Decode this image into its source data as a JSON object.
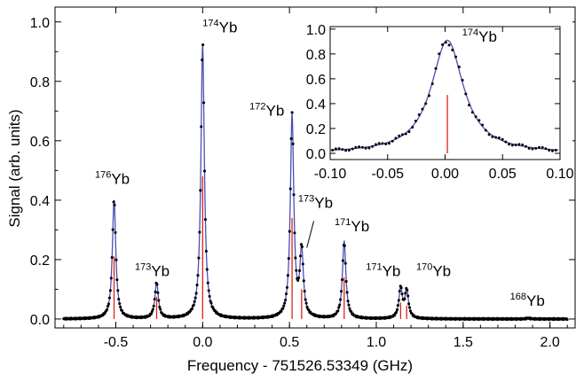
{
  "chart_data": [
    {
      "type": "line",
      "id": "main",
      "xlabel": "Frequency - 751526.53349 (GHz)",
      "ylabel": "Signal (arb. units)",
      "xlim": [
        -0.85,
        2.15
      ],
      "ylim": [
        -0.03,
        1.05
      ],
      "xticks": [
        {
          "v": -0.5,
          "label": "-0.5"
        },
        {
          "v": 0.0,
          "label": "0.0"
        },
        {
          "v": 0.5,
          "label": "0.5"
        },
        {
          "v": 1.0,
          "label": "1.0"
        },
        {
          "v": 1.5,
          "label": "1.5"
        },
        {
          "v": 2.0,
          "label": "2.0"
        }
      ],
      "yticks": [
        {
          "v": 0.0,
          "label": "0.0"
        },
        {
          "v": 0.2,
          "label": "0.2"
        },
        {
          "v": 0.4,
          "label": "0.4"
        },
        {
          "v": 0.6,
          "label": "0.6"
        },
        {
          "v": 0.8,
          "label": "0.8"
        },
        {
          "v": 1.0,
          "label": "1.0"
        }
      ],
      "peaks": [
        {
          "x": -0.51,
          "height": 0.4,
          "stick": 0.21
        },
        {
          "x": -0.265,
          "height": 0.12,
          "stick": 0.075
        },
        {
          "x": 0.0,
          "height": 0.92,
          "stick": 0.48
        },
        {
          "x": 0.515,
          "height": 0.68,
          "stick": 0.34
        },
        {
          "x": 0.57,
          "height": 0.22,
          "stick": 0.1
        },
        {
          "x": 0.815,
          "height": 0.26,
          "stick": 0.14
        },
        {
          "x": 1.14,
          "height": 0.1,
          "stick": 0.055
        },
        {
          "x": 1.175,
          "height": 0.095,
          "stick": 0.045
        },
        {
          "x": 1.875,
          "height": 0.003,
          "stick": 0.003
        }
      ],
      "labels": [
        {
          "iso": "176",
          "el": "Yb",
          "x": -0.52,
          "y": 0.455
        },
        {
          "iso": "173",
          "el": "Yb",
          "x": -0.29,
          "y": 0.145
        },
        {
          "iso": "174",
          "el": "Yb",
          "x": 0.1,
          "y": 0.965
        },
        {
          "iso": "172",
          "el": "Yb",
          "x": 0.37,
          "y": 0.685
        },
        {
          "iso": "173",
          "el": "Yb",
          "x": 0.65,
          "y": 0.375
        },
        {
          "iso": "171",
          "el": "Yb",
          "x": 0.86,
          "y": 0.295
        },
        {
          "iso": "171",
          "el": "Yb",
          "x": 1.04,
          "y": 0.145
        },
        {
          "iso": "170",
          "el": "Yb",
          "x": 1.33,
          "y": 0.145
        },
        {
          "iso": "168",
          "el": "Yb",
          "x": 1.87,
          "y": 0.045
        }
      ]
    },
    {
      "type": "line",
      "id": "inset",
      "xlim": [
        -0.1,
        0.1
      ],
      "ylim": [
        -0.05,
        1.02
      ],
      "xticks": [
        {
          "v": -0.1,
          "label": "-0.10"
        },
        {
          "v": -0.05,
          "label": "-0.05"
        },
        {
          "v": 0.0,
          "label": "0.00"
        },
        {
          "v": 0.05,
          "label": "0.05"
        },
        {
          "v": 0.1,
          "label": "0.10"
        }
      ],
      "yticks": [
        {
          "v": 0.0,
          "label": "0.0"
        },
        {
          "v": 0.2,
          "label": "0.2"
        },
        {
          "v": 0.4,
          "label": "0.4"
        },
        {
          "v": 0.6,
          "label": "0.6"
        },
        {
          "v": 0.8,
          "label": "0.8"
        },
        {
          "v": 1.0,
          "label": "1.0"
        }
      ],
      "peaks": [
        {
          "x": 0.002,
          "height": 0.91,
          "stick": 0.47
        }
      ],
      "labels": [
        {
          "iso": "174",
          "el": "Yb",
          "x": 0.03,
          "y": 0.9
        }
      ]
    }
  ],
  "colors": {
    "fit": "#4b4fb0",
    "stick": "#e0201c",
    "points": "#000000"
  }
}
